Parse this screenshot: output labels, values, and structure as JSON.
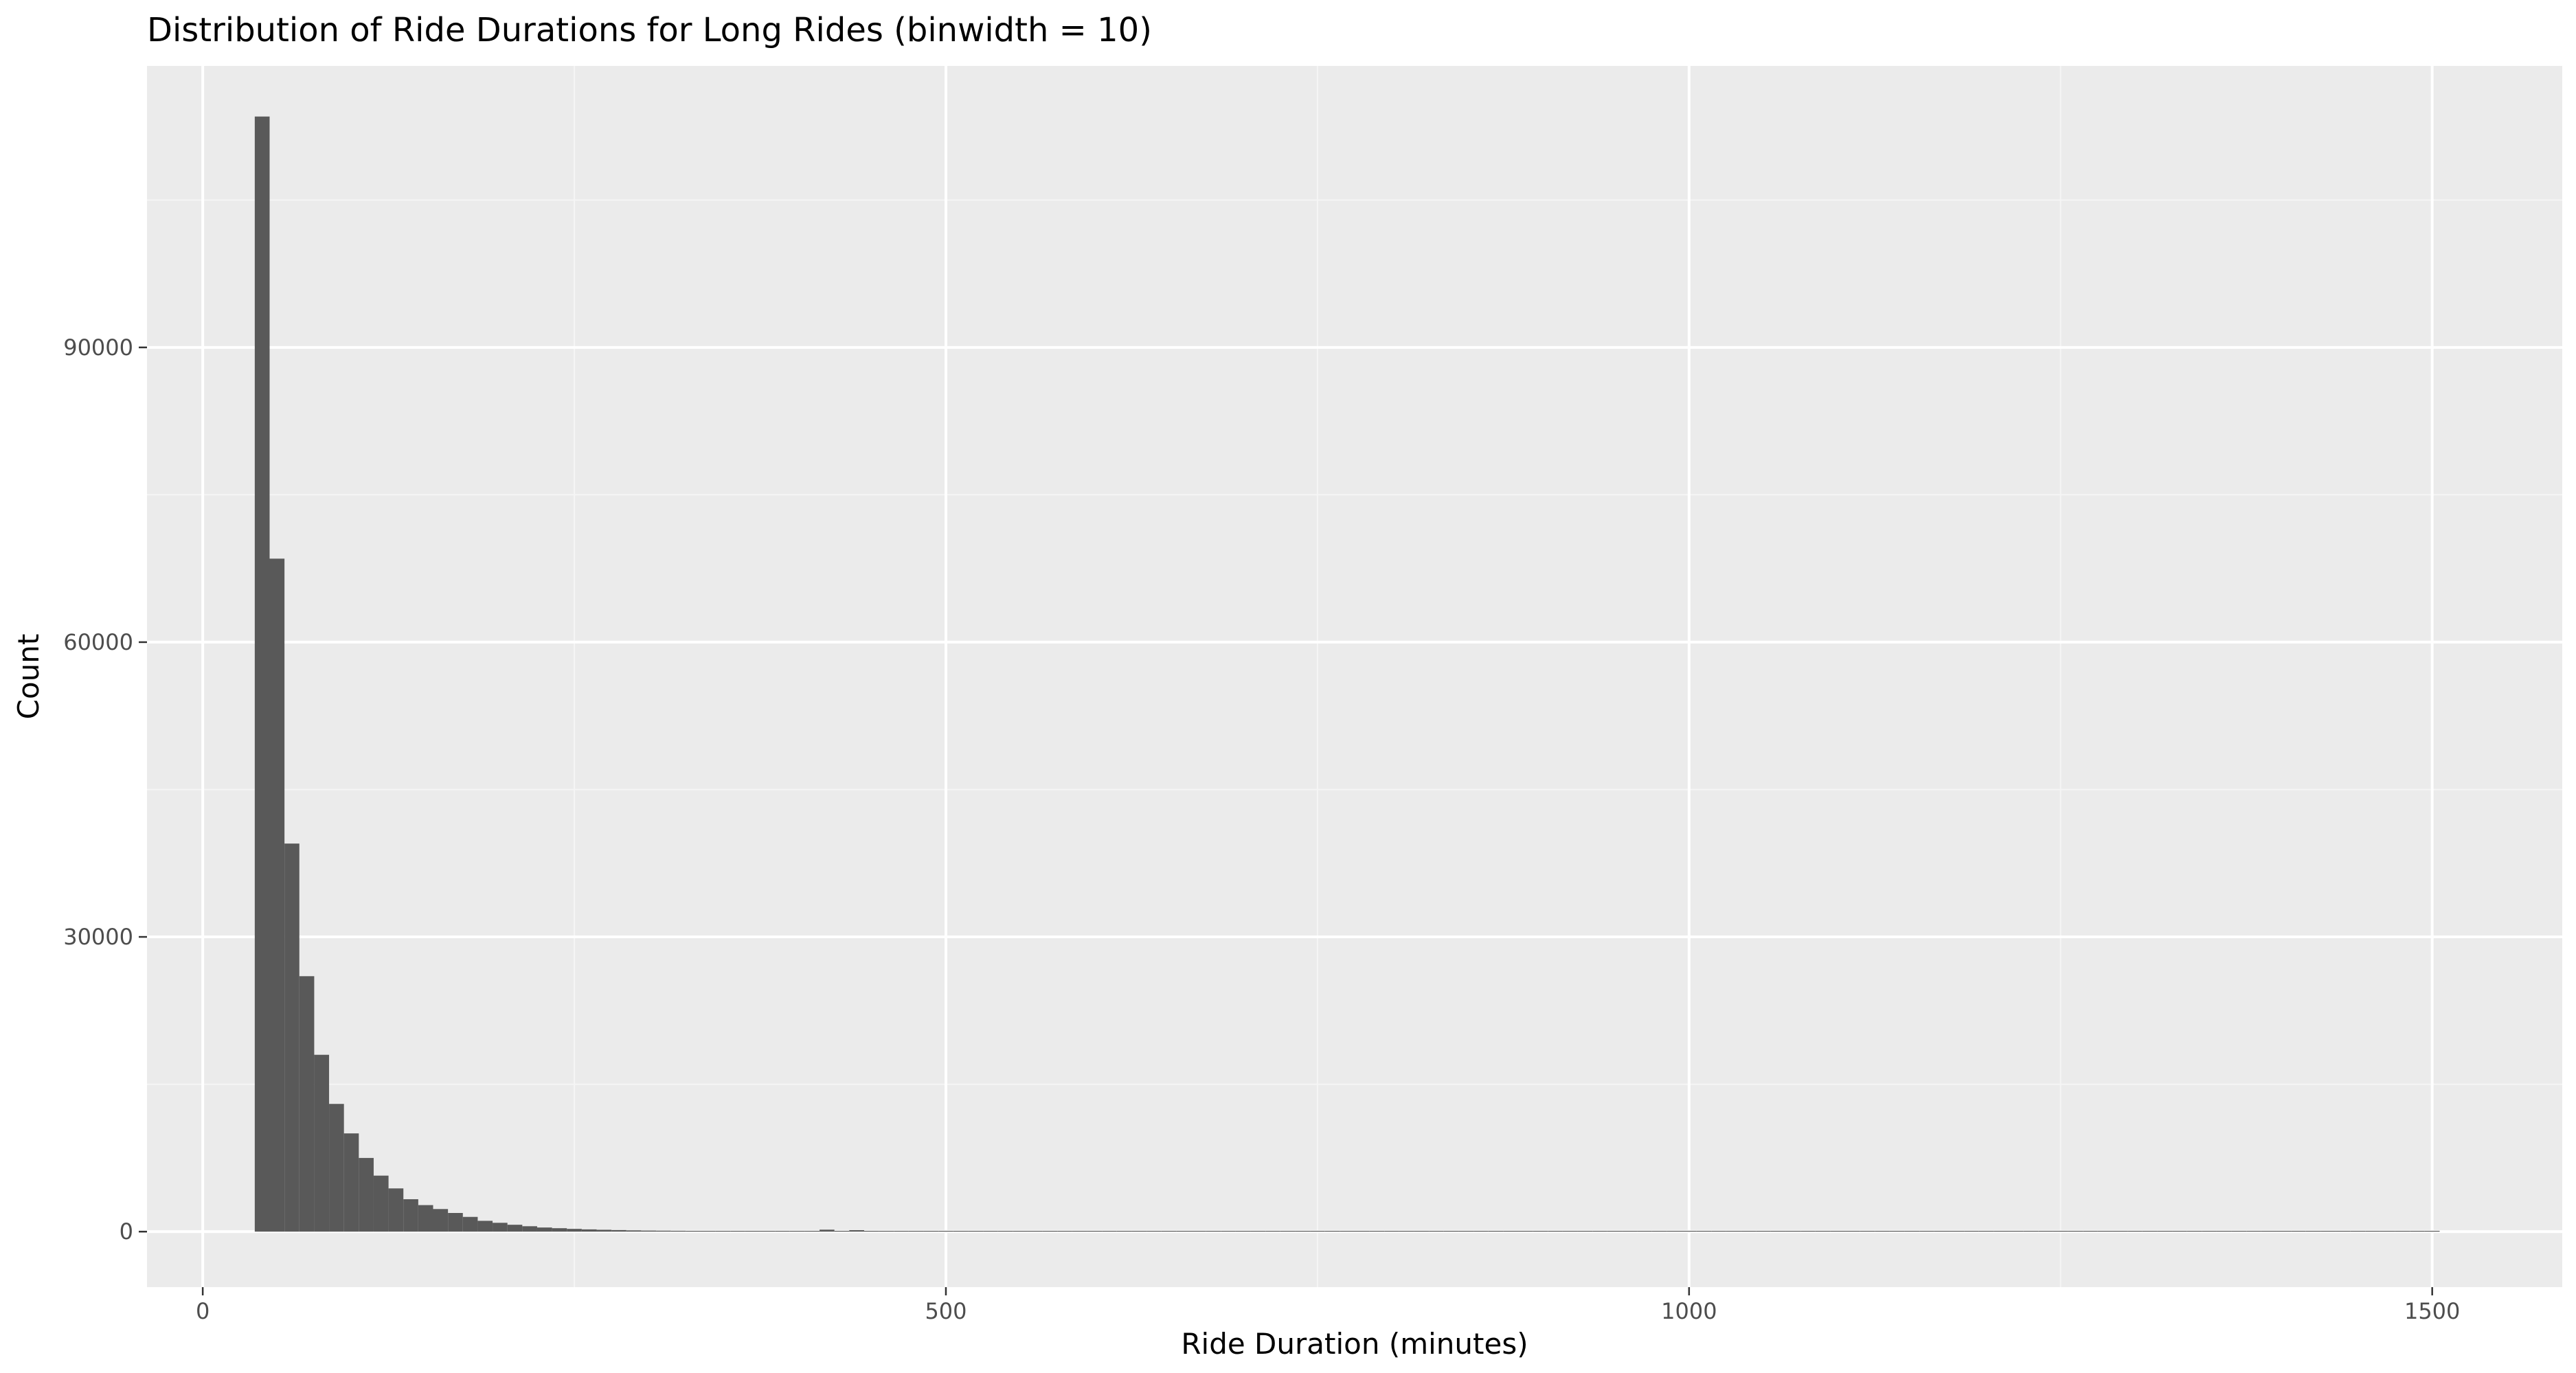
{
  "chart_data": {
    "type": "bar",
    "title": "Distribution of Ride Durations for Long Rides (binwidth = 10)",
    "xlabel": "Ride Duration (minutes)",
    "ylabel": "Count",
    "binwidth": 10,
    "xlim": [
      -37.5,
      1587.5
    ],
    "ylim": [
      -5650,
      118650
    ],
    "x_ticks": [
      0,
      500,
      1000,
      1500
    ],
    "x_tick_labels": [
      "0",
      "500",
      "1000",
      "1500"
    ],
    "y_ticks": [
      0,
      30000,
      60000,
      90000
    ],
    "y_tick_labels": [
      "0",
      "30000",
      "60000",
      "90000"
    ],
    "grid": true,
    "legend": "none",
    "bin_centers": [
      40,
      50,
      60,
      70,
      80,
      90,
      100,
      110,
      120,
      130,
      140,
      150,
      160,
      170,
      180,
      190,
      200,
      210,
      220,
      230,
      240,
      250,
      260,
      270,
      280,
      290,
      300,
      310,
      320,
      330,
      340,
      350,
      360,
      370,
      380,
      390,
      400,
      410,
      420,
      430,
      440,
      450,
      460,
      470,
      480,
      490,
      500,
      510,
      520,
      530,
      540,
      550,
      560,
      570,
      580,
      590,
      600,
      610,
      620,
      630,
      640,
      650,
      660,
      670,
      680,
      690,
      700,
      710,
      720,
      730,
      740,
      750,
      760,
      770,
      780,
      790,
      800,
      810,
      820,
      830,
      840,
      850,
      860,
      870,
      880,
      890,
      900,
      910,
      920,
      930,
      940,
      950,
      960,
      970,
      980,
      990,
      1000,
      1010,
      1020,
      1030,
      1040,
      1050,
      1060,
      1070,
      1080,
      1090,
      1100,
      1110,
      1120,
      1130,
      1140,
      1150,
      1160,
      1170,
      1180,
      1190,
      1200,
      1210,
      1220,
      1230,
      1240,
      1250,
      1260,
      1270,
      1280,
      1290,
      1300,
      1310,
      1320,
      1330,
      1340,
      1350,
      1360,
      1370,
      1380,
      1390,
      1400,
      1410,
      1420,
      1430,
      1440,
      1450,
      1460,
      1470,
      1480,
      1490,
      1500
    ],
    "values": [
      113500,
      68500,
      39500,
      26000,
      18000,
      13000,
      10000,
      7500,
      5700,
      4400,
      3300,
      2700,
      2300,
      1900,
      1500,
      1100,
      900,
      700,
      550,
      420,
      350,
      280,
      230,
      190,
      160,
      130,
      110,
      100,
      90,
      80,
      70,
      60,
      55,
      50,
      45,
      40,
      38,
      35,
      200,
      30,
      150,
      28,
      26,
      25,
      24,
      23,
      22,
      21,
      20,
      20,
      19,
      19,
      18,
      18,
      17,
      17,
      16,
      16,
      15,
      15,
      14,
      14,
      14,
      13,
      13,
      13,
      12,
      12,
      12,
      11,
      11,
      11,
      10,
      10,
      10,
      10,
      9,
      9,
      9,
      9,
      8,
      8,
      8,
      8,
      8,
      7,
      7,
      7,
      7,
      7,
      6,
      6,
      6,
      6,
      6,
      6,
      5,
      5,
      5,
      5,
      5,
      5,
      5,
      4,
      4,
      4,
      4,
      4,
      4,
      4,
      4,
      4,
      3,
      3,
      3,
      3,
      3,
      3,
      3,
      3,
      3,
      3,
      3,
      2,
      2,
      2,
      2,
      2,
      2,
      2,
      2,
      2,
      2,
      2,
      2,
      2,
      2,
      2,
      2,
      2,
      1,
      1,
      1,
      1,
      1,
      1,
      1
    ],
    "colors": {
      "bar_fill": "#595959",
      "panel_bg": "#ebebeb",
      "grid_major": "#ffffff",
      "grid_minor": "#f5f5f5"
    }
  }
}
